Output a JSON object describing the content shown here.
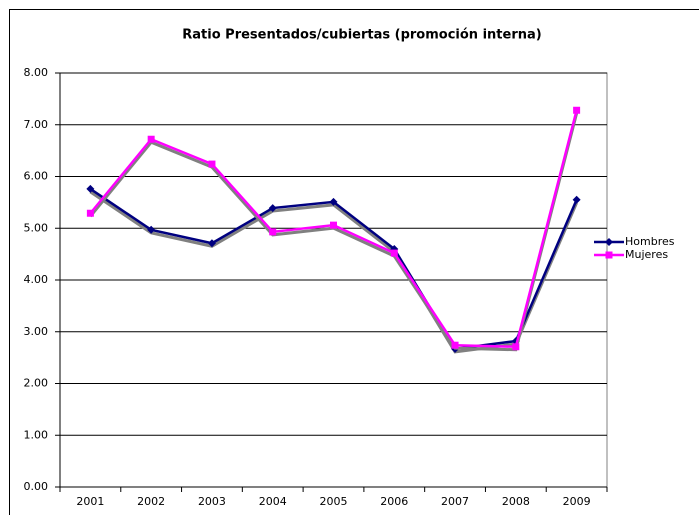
{
  "chart_data": {
    "type": "line",
    "title": "Ratio Presentados/cubiertas (promoción interna)",
    "categories": [
      "2001",
      "2002",
      "2003",
      "2004",
      "2005",
      "2006",
      "2007",
      "2008",
      "2009"
    ],
    "series": [
      {
        "name": "Hombres",
        "color": "#000080",
        "marker": "diamond",
        "values": [
          5.76,
          4.97,
          4.71,
          5.39,
          5.51,
          4.6,
          2.67,
          2.82,
          5.55
        ]
      },
      {
        "name": "Mujeres",
        "color": "#ff00ff",
        "marker": "square",
        "values": [
          5.29,
          6.72,
          6.24,
          4.93,
          5.06,
          4.52,
          2.74,
          2.71,
          7.28
        ]
      }
    ],
    "ylim": [
      0,
      8
    ],
    "yticks": [
      {
        "value": 0,
        "label": "0.00"
      },
      {
        "value": 1,
        "label": "1.00"
      },
      {
        "value": 2,
        "label": "2.00"
      },
      {
        "value": 3,
        "label": "3.00"
      },
      {
        "value": 4,
        "label": "4.00"
      },
      {
        "value": 5,
        "label": "5.00"
      },
      {
        "value": 6,
        "label": "6.00"
      },
      {
        "value": 7,
        "label": "7.00"
      },
      {
        "value": 8,
        "label": "8.00"
      }
    ],
    "grid": true,
    "legend": "right"
  }
}
